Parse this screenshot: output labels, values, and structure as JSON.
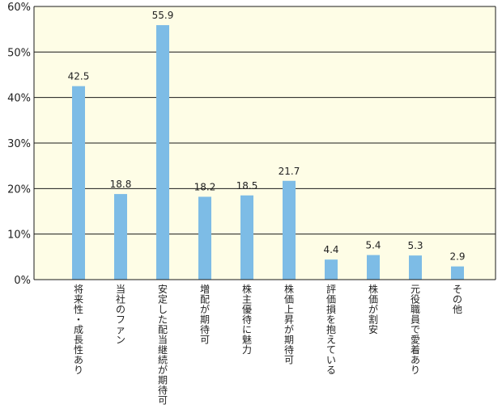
{
  "chart_data": {
    "type": "bar",
    "categories": [
      "将来性・成長性あり",
      "当社のファン",
      "安定した配当継続が期待可",
      "増配が期待可",
      "株主優待に魅力",
      "株価上昇が期待可",
      "評価損を抱えている",
      "株価が割安",
      "元役職員で愛着あり",
      "その他"
    ],
    "values": [
      42.5,
      18.8,
      55.9,
      18.2,
      18.5,
      21.7,
      4.4,
      5.4,
      5.3,
      2.9
    ],
    "value_labels": [
      "42.5",
      "18.8",
      "55.9",
      "18.2",
      "18.5",
      "21.7",
      "4.4",
      "5.4",
      "5.3",
      "2.9"
    ],
    "ylim": [
      0,
      60
    ],
    "yticks": [
      0,
      10,
      20,
      30,
      40,
      50,
      60
    ],
    "ytick_labels": [
      "0%",
      "10%",
      "20%",
      "30%",
      "40%",
      "50%",
      "60%"
    ],
    "grid": true,
    "title": "",
    "xlabel": "",
    "ylabel": "",
    "colors": {
      "bar": "#7dbce6",
      "plot_bg": "#fefde6",
      "grid": "#1a1a1a",
      "axis": "#1a1a1a"
    }
  }
}
